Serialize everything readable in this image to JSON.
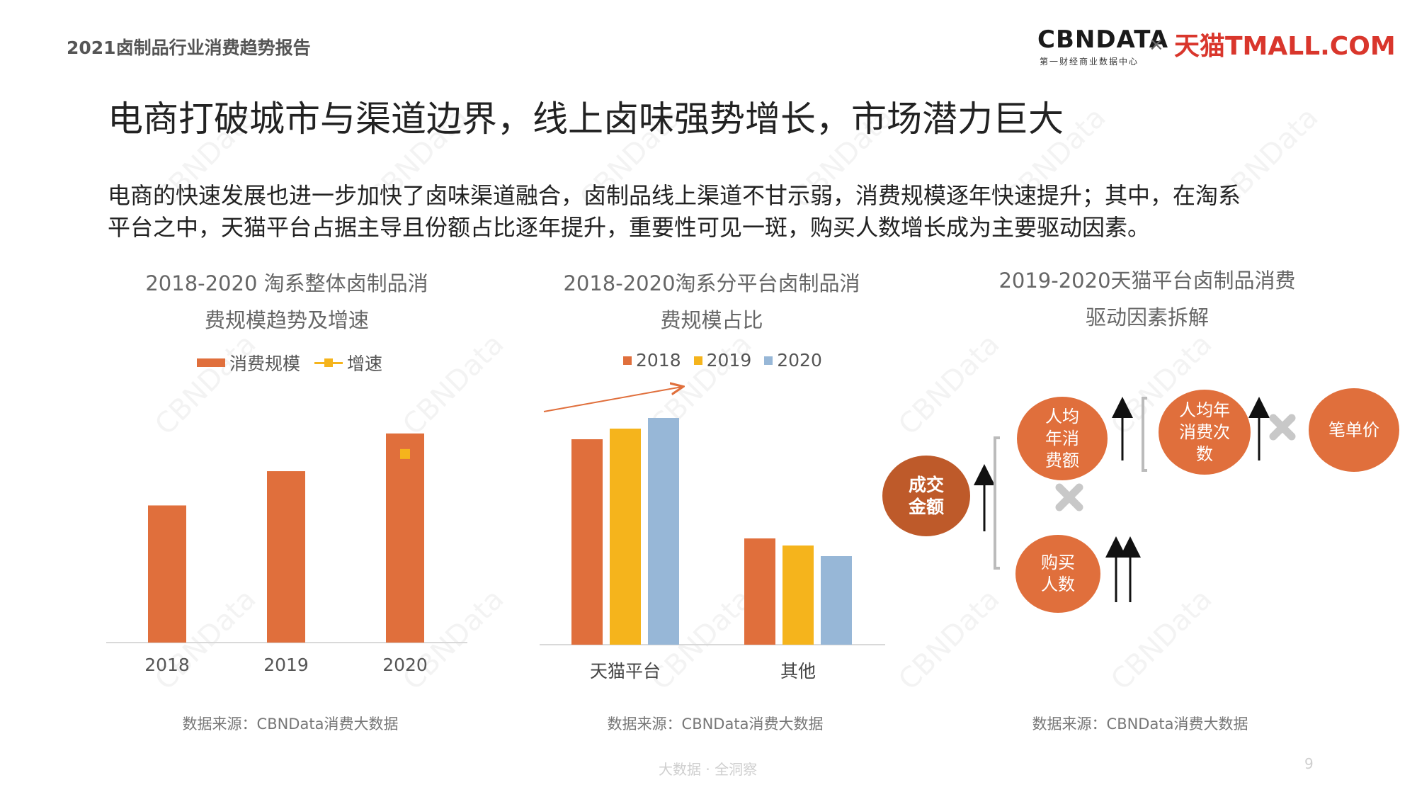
{
  "header": {
    "report_title": "2021卤制品行业消费趋势报告",
    "brand_cbn": "CBNDATA",
    "brand_cbn_sub": "第一财经商业数据中心",
    "brand_x": "×",
    "brand_tmall": "天猫TMALL.COM"
  },
  "headline": "电商打破城市与渠道边界，线上卤味强势增长，市场潜力巨大",
  "paragraph": {
    "line1": "电商的快速发展也进一步加快了卤味渠道融合，卤制品线上渠道不甘示弱，消费规模逐年快速提升；其中，在淘系",
    "line2": "平台之中，天猫平台占据主导且份额占比逐年提升，重要性可见一斑，购买人数增长成为主要驱动因素。"
  },
  "colors": {
    "orange": "#E06F3C",
    "yellow": "#F5B41C",
    "blue": "#97B7D7",
    "dark_orange": "#BE5A2A",
    "cross": "#C8C8C8"
  },
  "chart_data": [
    {
      "type": "bar",
      "title_line1": "2018-2020 淘系整体卤制品消",
      "title_line2": "费规模趋势及增速",
      "categories": [
        "2018",
        "2019",
        "2020"
      ],
      "series": [
        {
          "name": "消费规模",
          "values": [
            40,
            50,
            61
          ]
        },
        {
          "name": "增速",
          "values": [
            null,
            null,
            55
          ]
        }
      ],
      "ylim": [
        0,
        62
      ],
      "axis_labels_shown": false,
      "grid": false,
      "legend": "top",
      "source": "数据来源：CBNData消费大数据"
    },
    {
      "type": "bar",
      "title_line1": "2018-2020淘系分平台卤制品消",
      "title_line2": "费规模占比",
      "categories": [
        "天猫平台",
        "其他"
      ],
      "series": [
        {
          "name": "2018",
          "values": [
            58,
            30
          ]
        },
        {
          "name": "2019",
          "values": [
            61,
            28
          ]
        },
        {
          "name": "2020",
          "values": [
            64,
            25
          ]
        }
      ],
      "ylim": [
        0,
        66
      ],
      "axis_labels_shown": false,
      "grid": false,
      "legend": "top",
      "annotation": "rising-arrow",
      "source": "数据来源：CBNData消费大数据"
    }
  ],
  "driver_diagram": {
    "title_line1": "2019-2020天猫平台卤制品消费",
    "title_line2": "驱动因素拆解",
    "gmv": "成交\n金额",
    "per_capita": "人均\n年消\n费额",
    "buyers": "购买\n人数",
    "frequency": "人均年\n消费次\n数",
    "unit_price": "笔单价",
    "source": "数据来源：CBNData消费大数据"
  },
  "footer": "大数据 · 全洞察",
  "page_number": "9",
  "watermark": "CBNData"
}
